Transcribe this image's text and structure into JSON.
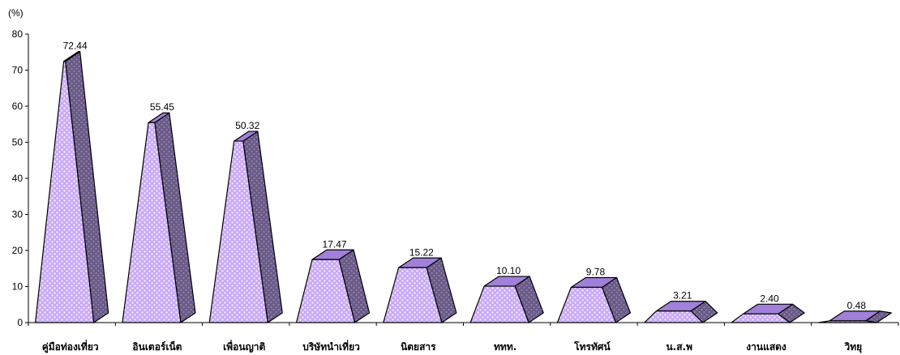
{
  "chart_data": {
    "type": "bar",
    "style": "3d-pyramid-frustum",
    "title": "",
    "xlabel": "",
    "ylabel": "(%)",
    "ylim": [
      0,
      80
    ],
    "yticks": [
      "0",
      "10",
      "20",
      "30",
      "40",
      "50",
      "60",
      "70",
      "80"
    ],
    "categories": [
      "คู่มือท่องเที่ยว",
      "อินเตอร์เน็ต",
      "เพื่อนญาติ",
      "บริษัทนำเที่ยว",
      "นิตยสาร",
      "ททท.",
      "โทรทัศน์",
      "น.ส.พ",
      "งานแสดง",
      "วิทยุ"
    ],
    "values": [
      72.44,
      55.45,
      50.32,
      17.47,
      15.22,
      10.1,
      9.78,
      3.21,
      2.4,
      0.48
    ],
    "value_labels": [
      "72.44",
      "55.45",
      "50.32",
      "17.47",
      "15.22",
      "10.10",
      "9.78",
      "3.21",
      "2.40",
      "0.48"
    ],
    "grid": false,
    "legend": "none",
    "colors": {
      "front": "#c8a8f8",
      "front_dots": "#f4eaff",
      "side": "#6a5a86",
      "side_dots": "#9a8ab6",
      "top": "#a080d8",
      "outline": "#000000"
    }
  }
}
